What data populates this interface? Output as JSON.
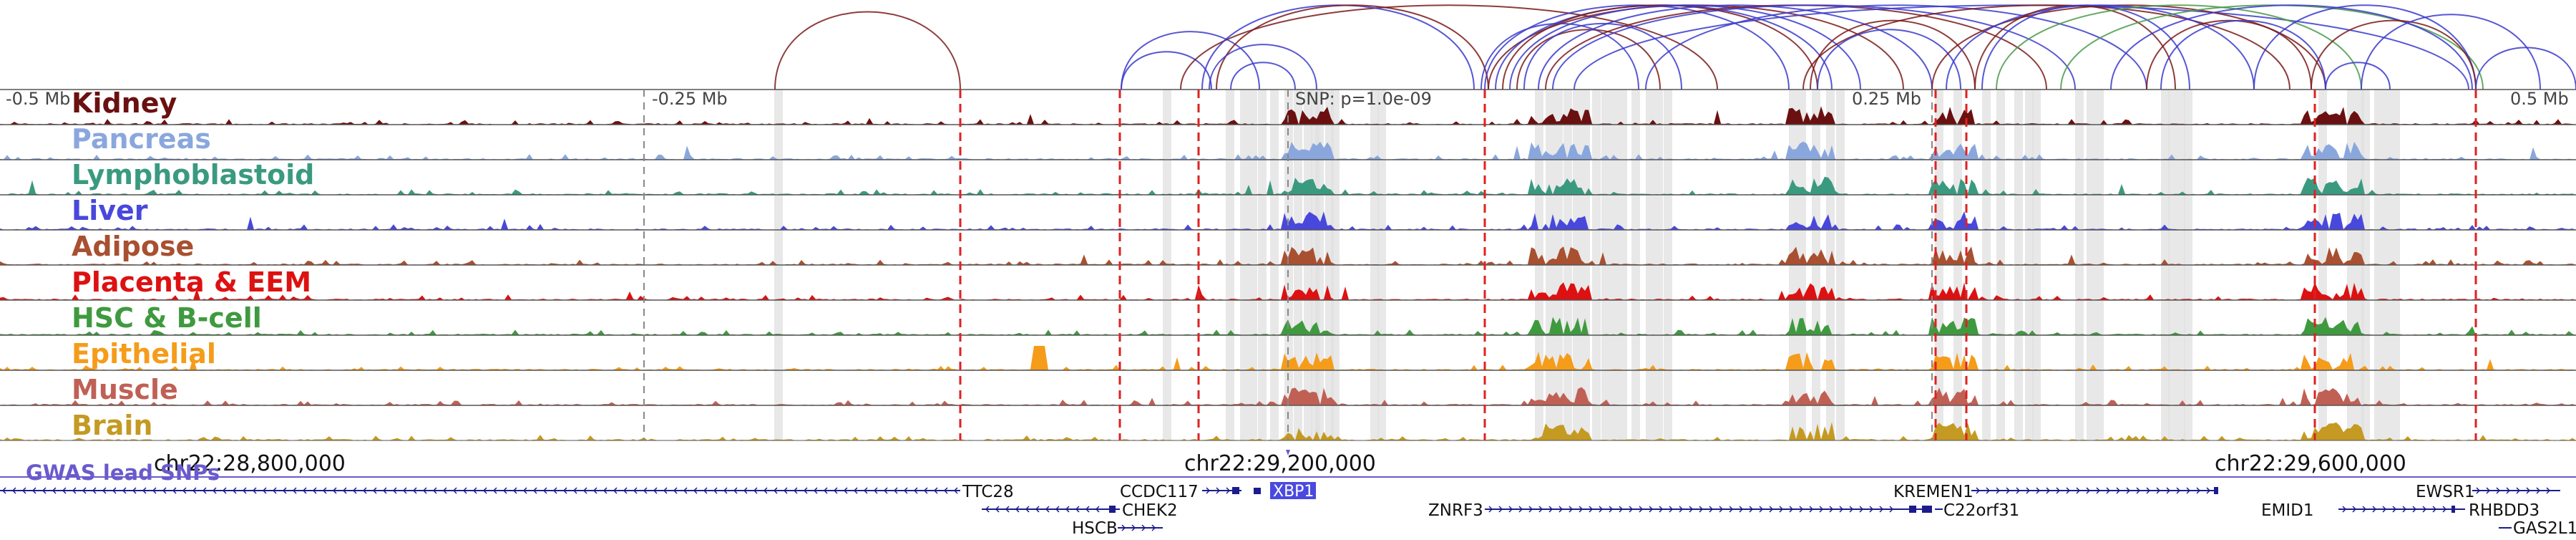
{
  "tracks": [
    {
      "label": "Kidney",
      "color": "#6b1010"
    },
    {
      "label": "Pancreas",
      "color": "#8aa7dd"
    },
    {
      "label": "Lymphoblastoid",
      "color": "#3a9a80"
    },
    {
      "label": "Liver",
      "color": "#4848dd"
    },
    {
      "label": "Adipose",
      "color": "#a85030"
    },
    {
      "label": "Placenta & EEM",
      "color": "#dd1111"
    },
    {
      "label": "HSC & B-cell",
      "color": "#3f9a3f"
    },
    {
      "label": "Epithelial",
      "color": "#f59c1a"
    },
    {
      "label": "Muscle",
      "color": "#c06055"
    },
    {
      "label": "Brain",
      "color": "#c49a22"
    }
  ],
  "top_ruler": {
    "labels": [
      "-0.5 Mb",
      "-0.25 Mb",
      "SNP: p=1.0e-09",
      "0.25 Mb",
      "0.5 Mb"
    ]
  },
  "coordinates": {
    "labels": [
      "chr22:28,800,000",
      "chr22:29,200,000",
      "chr22:29,600,000"
    ]
  },
  "gwas": {
    "label": "GWAS lead SNPs",
    "color": "#6a5acd"
  },
  "genes": [
    {
      "name": "TTC28"
    },
    {
      "name": "CCDC117"
    },
    {
      "name": "CHEK2"
    },
    {
      "name": "HSCB"
    },
    {
      "name": "XBP1",
      "highlight": true
    },
    {
      "name": "ZNRF3"
    },
    {
      "name": "KREMEN1"
    },
    {
      "name": "C22orf31"
    },
    {
      "name": "EMID1"
    },
    {
      "name": "EWSR1"
    },
    {
      "name": "RHBDD3"
    },
    {
      "name": "GAS2L1"
    }
  ],
  "colors": {
    "gene_line": "#1c1c8c",
    "highlight_fill": "#4a4ae0",
    "boundary": "#dd2222",
    "shade": "#e0e0e0",
    "loop_dark": "#7a1a1a",
    "loop_blue": "#3a3acc",
    "loop_green": "#4a9a4a"
  }
}
